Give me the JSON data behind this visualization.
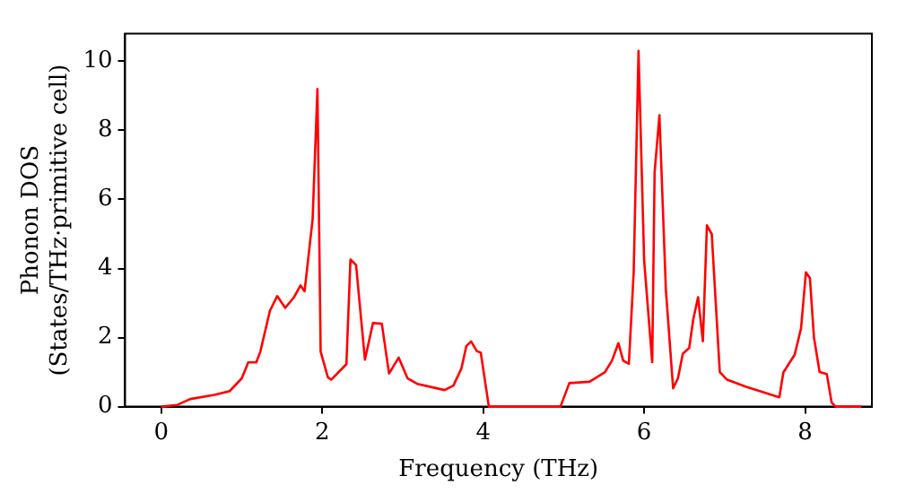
{
  "chart_data": {
    "type": "line",
    "xlabel": "Frequency (THz)",
    "ylabel": "Phonon DOS\n(States/THz·primitive cell)",
    "xlim": [
      -0.45,
      8.83
    ],
    "ylim": [
      0,
      10.8
    ],
    "xticks": [
      0,
      2,
      4,
      6,
      8
    ],
    "yticks": [
      0,
      2,
      4,
      6,
      8,
      10
    ],
    "grid": false,
    "legend": false,
    "marker": "none",
    "line_style": "solid",
    "series": [
      {
        "color": "#ff0000",
        "x": [
          0,
          0.2,
          0.36,
          0.66,
          0.85,
          1.0,
          1.08,
          1.18,
          1.23,
          1.35,
          1.44,
          1.54,
          1.65,
          1.73,
          1.78,
          1.88,
          1.94,
          1.98,
          2.07,
          2.11,
          2.3,
          2.35,
          2.42,
          2.53,
          2.63,
          2.74,
          2.83,
          2.95,
          3.06,
          3.18,
          3.52,
          3.63,
          3.73,
          3.79,
          3.85,
          3.92,
          3.97,
          4.07,
          4.96,
          5.07,
          5.32,
          5.51,
          5.6,
          5.68,
          5.74,
          5.81,
          5.87,
          5.93,
          6.0,
          6.1,
          6.13,
          6.19,
          6.27,
          6.36,
          6.42,
          6.48,
          6.56,
          6.61,
          6.67,
          6.73,
          6.78,
          6.84,
          6.94,
          7.03,
          7.26,
          7.68,
          7.73,
          7.87,
          7.95,
          8.01,
          8.06,
          8.11,
          8.18,
          8.24,
          8.27,
          8.33,
          8.38,
          8.7
        ],
        "values": [
          0,
          0.05,
          0.22,
          0.34,
          0.45,
          0.82,
          1.28,
          1.28,
          1.59,
          2.78,
          3.2,
          2.86,
          3.17,
          3.51,
          3.34,
          5.42,
          9.2,
          1.59,
          0.85,
          0.78,
          1.23,
          4.26,
          4.1,
          1.36,
          2.42,
          2.4,
          0.96,
          1.42,
          0.82,
          0.66,
          0.48,
          0.61,
          1.11,
          1.75,
          1.89,
          1.61,
          1.56,
          0,
          0,
          0.68,
          0.72,
          0.99,
          1.33,
          1.84,
          1.33,
          1.24,
          3.89,
          10.3,
          4.23,
          1.29,
          6.79,
          8.44,
          3.38,
          0.53,
          0.82,
          1.53,
          1.7,
          2.52,
          3.17,
          1.89,
          5.25,
          5.0,
          1.0,
          0.78,
          0.58,
          0.27,
          0.99,
          1.5,
          2.27,
          3.89,
          3.72,
          2.01,
          1.0,
          0.96,
          0.94,
          0.12,
          0,
          0
        ]
      }
    ]
  }
}
